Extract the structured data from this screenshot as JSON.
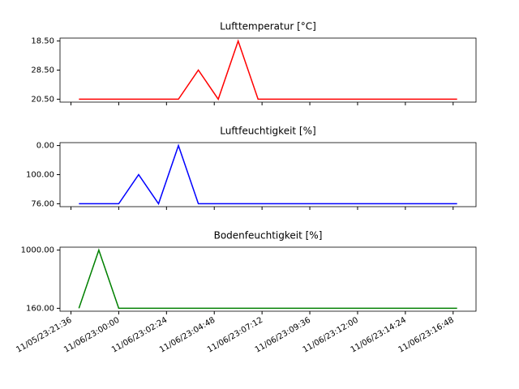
{
  "chart_data": [
    {
      "type": "line",
      "title": "Lufttemperatur [°C]",
      "ycategories": [
        "20.50",
        "28.50",
        "18.50"
      ],
      "series": [
        {
          "color": "#ff0000",
          "values": [
            "20.50",
            "20.50",
            "20.50",
            "20.50",
            "20.50",
            "20.50",
            "28.50",
            "20.50",
            "18.50",
            "20.50",
            "20.50",
            "20.50",
            "20.50",
            "20.50",
            "20.50",
            "20.50",
            "20.50",
            "20.50",
            "20.50",
            "20.50"
          ]
        }
      ]
    },
    {
      "type": "line",
      "title": "Luftfeuchtigkeit [%]",
      "ycategories": [
        "76.00",
        "100.00",
        "0.00"
      ],
      "series": [
        {
          "color": "#0000ff",
          "values": [
            "76.00",
            "76.00",
            "76.00",
            "100.00",
            "76.00",
            "0.00",
            "76.00",
            "76.00",
            "76.00",
            "76.00",
            "76.00",
            "76.00",
            "76.00",
            "76.00",
            "76.00",
            "76.00",
            "76.00",
            "76.00",
            "76.00",
            "76.00"
          ]
        }
      ]
    },
    {
      "type": "line",
      "title": "Bodenfeuchtigkeit [%]",
      "ycategories": [
        "160.00",
        "1000.00"
      ],
      "series": [
        {
          "color": "#008000",
          "values": [
            "160.00",
            "1000.00",
            "160.00",
            "160.00",
            "160.00",
            "160.00",
            "160.00",
            "160.00",
            "160.00",
            "160.00",
            "160.00",
            "160.00",
            "160.00",
            "160.00",
            "160.00",
            "160.00",
            "160.00",
            "160.00",
            "160.00",
            "160.00"
          ]
        }
      ],
      "x": [
        "2023-11-05T22:00",
        "2023-11-05T23:00",
        "2023-11-06T00:00",
        "2023-11-06T01:00",
        "2023-11-06T02:00",
        "2023-11-06T03:00",
        "2023-11-06T04:00",
        "2023-11-06T05:00",
        "2023-11-06T06:00",
        "2023-11-06T07:00",
        "2023-11-06T08:00",
        "2023-11-06T09:00",
        "2023-11-06T10:00",
        "2023-11-06T11:00",
        "2023-11-06T12:00",
        "2023-11-06T13:00",
        "2023-11-06T14:00",
        "2023-11-06T15:00",
        "2023-11-06T16:00",
        "2023-11-06T17:00"
      ],
      "xlim": [
        "2023-11-05T21:03",
        "2023-11-06T17:57"
      ],
      "xticks": [
        {
          "value": "2023-11-05T21:36",
          "label": "11/05/23:21:36"
        },
        {
          "value": "2023-11-06T00:00",
          "label": "11/06/23:00:00"
        },
        {
          "value": "2023-11-06T02:24",
          "label": "11/06/23:02:24"
        },
        {
          "value": "2023-11-06T04:48",
          "label": "11/06/23:04:48"
        },
        {
          "value": "2023-11-06T07:12",
          "label": "11/06/23:07:12"
        },
        {
          "value": "2023-11-06T09:36",
          "label": "11/06/23:09:36"
        },
        {
          "value": "2023-11-06T12:00",
          "label": "11/06/23:12:00"
        },
        {
          "value": "2023-11-06T14:24",
          "label": "11/06/23:14:24"
        },
        {
          "value": "2023-11-06T16:48",
          "label": "11/06/23:16:48"
        }
      ]
    }
  ]
}
